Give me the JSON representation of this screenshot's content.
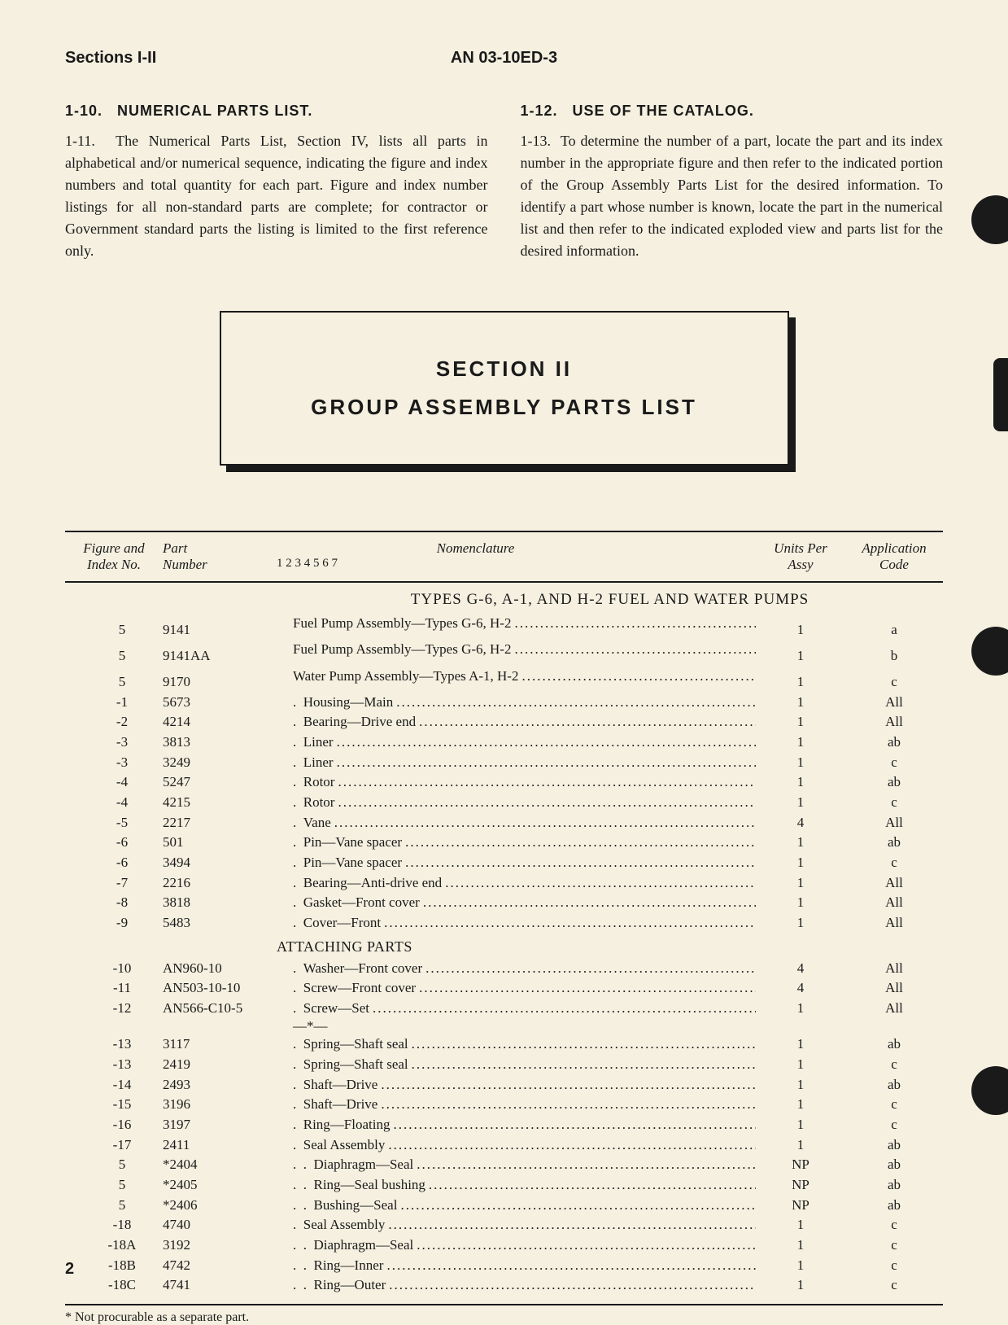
{
  "header": {
    "left": "Sections I-II",
    "center": "AN 03-10ED-3"
  },
  "left_col": {
    "heading_num": "1-10.",
    "heading_text": "NUMERICAL PARTS LIST.",
    "para_num": "1-11.",
    "para_text": "The Numerical Parts List, Section IV, lists all parts in alphabetical and/or numerical sequence, indicating the figure and index numbers and total quantity for each part. Figure and index number listings for all non-standard parts are complete; for contractor or Government standard parts the listing is limited to the first reference only."
  },
  "right_col": {
    "heading_num": "1-12.",
    "heading_text": "USE OF THE CATALOG.",
    "para_num": "1-13.",
    "para_text": "To determine the number of a part, locate the part and its index number in the appropriate figure and then refer to the indicated portion of the Group Assembly Parts List for the desired information. To identify a part whose number is known, locate the part in the numerical list and then refer to the indicated exploded view and parts list for the desired information."
  },
  "section_box": {
    "line1": "SECTION II",
    "line2": "GROUP ASSEMBLY PARTS LIST"
  },
  "table": {
    "columns": {
      "fig": "Figure and Index No.",
      "part": "Part Number",
      "nom": "Nomenclature",
      "nom_sub": "1 2 3 4 5 6 7",
      "units": "Units Per Assy",
      "app": "Application Code"
    },
    "title": "TYPES G-6, A-1, AND H-2 FUEL AND WATER PUMPS",
    "attaching_heading": "ATTACHING PARTS",
    "separator": "—*—",
    "rows_a": [
      {
        "fig": "5",
        "part": "9141",
        "indent": 0,
        "nom": "Fuel Pump Assembly—Types G-6, H-2",
        "units": "1",
        "app": "a"
      },
      {
        "fig": "5",
        "part": "9141AA",
        "indent": 0,
        "nom": "Fuel Pump Assembly—Types G-6, H-2",
        "units": "1",
        "app": "b"
      },
      {
        "fig": "5",
        "part": "9170",
        "indent": 0,
        "nom": "Water Pump Assembly—Types A-1, H-2",
        "units": "1",
        "app": "c"
      },
      {
        "fig": "-1",
        "part": "5673",
        "indent": 1,
        "nom": "Housing—Main",
        "units": "1",
        "app": "All"
      },
      {
        "fig": "-2",
        "part": "4214",
        "indent": 1,
        "nom": "Bearing—Drive end",
        "units": "1",
        "app": "All"
      },
      {
        "fig": "-3",
        "part": "3813",
        "indent": 1,
        "nom": "Liner",
        "units": "1",
        "app": "ab"
      },
      {
        "fig": "-3",
        "part": "3249",
        "indent": 1,
        "nom": "Liner",
        "units": "1",
        "app": "c"
      },
      {
        "fig": "-4",
        "part": "5247",
        "indent": 1,
        "nom": "Rotor",
        "units": "1",
        "app": "ab"
      },
      {
        "fig": "-4",
        "part": "4215",
        "indent": 1,
        "nom": "Rotor",
        "units": "1",
        "app": "c"
      },
      {
        "fig": "-5",
        "part": "2217",
        "indent": 1,
        "nom": "Vane",
        "units": "4",
        "app": "All"
      },
      {
        "fig": "-6",
        "part": "501",
        "indent": 1,
        "nom": "Pin—Vane spacer",
        "units": "1",
        "app": "ab"
      },
      {
        "fig": "-6",
        "part": "3494",
        "indent": 1,
        "nom": "Pin—Vane spacer",
        "units": "1",
        "app": "c"
      },
      {
        "fig": "-7",
        "part": "2216",
        "indent": 1,
        "nom": "Bearing—Anti-drive end",
        "units": "1",
        "app": "All"
      },
      {
        "fig": "-8",
        "part": "3818",
        "indent": 1,
        "nom": "Gasket—Front cover",
        "units": "1",
        "app": "All"
      },
      {
        "fig": "-9",
        "part": "5483",
        "indent": 1,
        "nom": "Cover—Front",
        "units": "1",
        "app": "All"
      }
    ],
    "rows_b": [
      {
        "fig": "-10",
        "part": "AN960-10",
        "indent": 1,
        "nom": "Washer—Front cover",
        "units": "4",
        "app": "All"
      },
      {
        "fig": "-11",
        "part": "AN503-10-10",
        "indent": 1,
        "nom": "Screw—Front cover",
        "units": "4",
        "app": "All"
      },
      {
        "fig": "-12",
        "part": "AN566-C10-5",
        "indent": 1,
        "nom": "Screw—Set",
        "units": "1",
        "app": "All"
      }
    ],
    "rows_c": [
      {
        "fig": "-13",
        "part": "3117",
        "indent": 1,
        "nom": "Spring—Shaft seal",
        "units": "1",
        "app": "ab"
      },
      {
        "fig": "-13",
        "part": "2419",
        "indent": 1,
        "nom": "Spring—Shaft seal",
        "units": "1",
        "app": "c"
      },
      {
        "fig": "-14",
        "part": "2493",
        "indent": 1,
        "nom": "Shaft—Drive",
        "units": "1",
        "app": "ab"
      },
      {
        "fig": "-15",
        "part": "3196",
        "indent": 1,
        "nom": "Shaft—Drive",
        "units": "1",
        "app": "c"
      },
      {
        "fig": "-16",
        "part": "3197",
        "indent": 1,
        "nom": "Ring—Floating",
        "units": "1",
        "app": "c"
      },
      {
        "fig": "-17",
        "part": "2411",
        "indent": 1,
        "nom": "Seal Assembly",
        "units": "1",
        "app": "ab"
      },
      {
        "fig": "5",
        "part": "*2404",
        "indent": 2,
        "nom": "Diaphragm—Seal",
        "units": "NP",
        "app": "ab"
      },
      {
        "fig": "5",
        "part": "*2405",
        "indent": 2,
        "nom": "Ring—Seal bushing",
        "units": "NP",
        "app": "ab"
      },
      {
        "fig": "5",
        "part": "*2406",
        "indent": 2,
        "nom": "Bushing—Seal",
        "units": "NP",
        "app": "ab"
      },
      {
        "fig": "-18",
        "part": "4740",
        "indent": 1,
        "nom": "Seal Assembly",
        "units": "1",
        "app": "c"
      },
      {
        "fig": "-18A",
        "part": "3192",
        "indent": 2,
        "nom": "Diaphragm—Seal",
        "units": "1",
        "app": "c"
      },
      {
        "fig": "-18B",
        "part": "4742",
        "indent": 2,
        "nom": "Ring—Inner",
        "units": "1",
        "app": "c"
      },
      {
        "fig": "-18C",
        "part": "4741",
        "indent": 2,
        "nom": "Ring—Outer",
        "units": "1",
        "app": "c"
      }
    ]
  },
  "footnote": "* Not procurable as a separate part.",
  "page_number": "2"
}
